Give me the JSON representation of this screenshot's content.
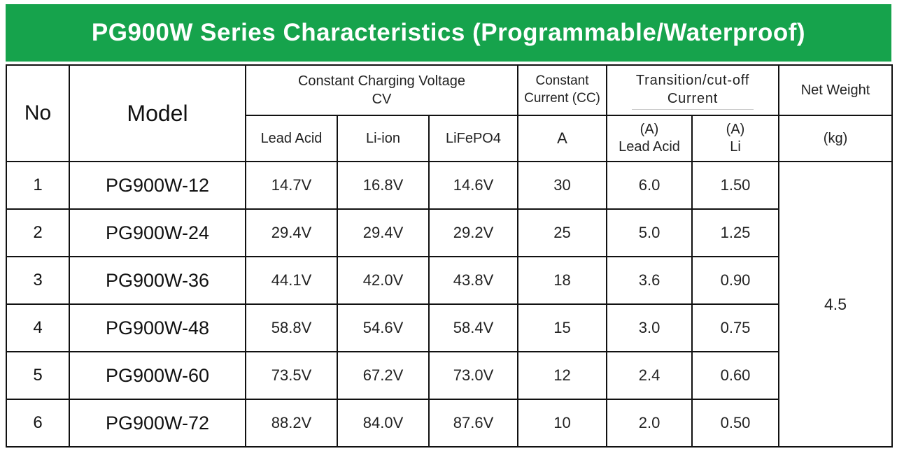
{
  "accent_color": "#16a34c",
  "banner": {
    "title": "PG900W Series Characteristics (Programmable/Waterproof)"
  },
  "table": {
    "headers": {
      "no": "No",
      "model": "Model",
      "cv_group_line1": "Constant Charging Voltage",
      "cv_group_line2": "CV",
      "cc_line1": "Constant",
      "cc_line2": "Current (CC)",
      "transition_line1": "Transition/cut-off",
      "transition_line2": "Current",
      "net_weight": "Net Weight",
      "sub_lead_acid": "Lead Acid",
      "sub_li_ion": "Li-ion",
      "sub_lifepo4": "LiFePO4",
      "sub_cc_unit": "A",
      "sub_cutoff_lead_line1": "(A)",
      "sub_cutoff_lead_line2": "Lead Acid",
      "sub_cutoff_li_line1": "(A)",
      "sub_cutoff_li_line2": "Li",
      "sub_net_weight_unit": "(kg)"
    },
    "rows": [
      {
        "no": "1",
        "model": "PG900W-12",
        "lead_acid_cv": "14.7V",
        "li_ion_cv": "16.8V",
        "lifepo4_cv": "14.6V",
        "cc": "30",
        "cutoff_lead": "6.0",
        "cutoff_li": "1.50"
      },
      {
        "no": "2",
        "model": "PG900W-24",
        "lead_acid_cv": "29.4V",
        "li_ion_cv": "29.4V",
        "lifepo4_cv": "29.2V",
        "cc": "25",
        "cutoff_lead": "5.0",
        "cutoff_li": "1.25"
      },
      {
        "no": "3",
        "model": "PG900W-36",
        "lead_acid_cv": "44.1V",
        "li_ion_cv": "42.0V",
        "lifepo4_cv": "43.8V",
        "cc": "18",
        "cutoff_lead": "3.6",
        "cutoff_li": "0.90"
      },
      {
        "no": "4",
        "model": "PG900W-48",
        "lead_acid_cv": "58.8V",
        "li_ion_cv": "54.6V",
        "lifepo4_cv": "58.4V",
        "cc": "15",
        "cutoff_lead": "3.0",
        "cutoff_li": "0.75"
      },
      {
        "no": "5",
        "model": "PG900W-60",
        "lead_acid_cv": "73.5V",
        "li_ion_cv": "67.2V",
        "lifepo4_cv": "73.0V",
        "cc": "12",
        "cutoff_lead": "2.4",
        "cutoff_li": "0.60"
      },
      {
        "no": "6",
        "model": "PG900W-72",
        "lead_acid_cv": "88.2V",
        "li_ion_cv": "84.0V",
        "lifepo4_cv": "87.6V",
        "cc": "10",
        "cutoff_lead": "2.0",
        "cutoff_li": "0.50"
      }
    ],
    "net_weight_value": "4.5"
  }
}
